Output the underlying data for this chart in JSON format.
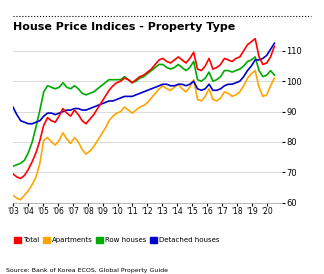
{
  "title": "House Price Indices - Property Type",
  "source": "Source: Bank of Korea ECOS, Global Property Guide",
  "ylim": [
    60,
    115
  ],
  "yticks": [
    60,
    70,
    80,
    90,
    100,
    110
  ],
  "colors": {
    "total": "#ff0000",
    "apartments": "#ffa500",
    "row_houses": "#00aa00",
    "detached": "#0000cc"
  },
  "legend": [
    "Total",
    "Apartments",
    "Row houses",
    "Detached houses"
  ],
  "x_start": 2003.0,
  "x_end": 2020.5,
  "xlim": [
    2003.0,
    2021.0
  ],
  "xtick_labels": [
    "'03",
    "'04",
    "'05",
    "'06",
    "'07",
    "'08",
    "'09",
    "'10",
    "'11",
    "'12",
    "'13",
    "'14",
    "'15",
    "'16",
    "'17",
    "'18",
    "'19",
    "'20"
  ],
  "total": [
    69.5,
    68.5,
    68.0,
    69.0,
    71.0,
    73.5,
    76.5,
    80.5,
    85.5,
    88.0,
    87.0,
    86.5,
    88.5,
    91.0,
    89.5,
    88.5,
    90.5,
    89.0,
    87.0,
    86.0,
    87.5,
    89.0,
    91.0,
    93.0,
    95.0,
    97.0,
    98.5,
    99.5,
    100.0,
    101.0,
    100.5,
    99.5,
    100.5,
    101.5,
    102.0,
    103.0,
    104.0,
    105.5,
    107.0,
    107.5,
    106.5,
    106.0,
    107.0,
    108.0,
    107.0,
    106.0,
    107.5,
    109.5,
    104.0,
    103.5,
    105.0,
    107.5,
    104.0,
    104.5,
    105.5,
    107.5,
    107.0,
    106.5,
    107.5,
    108.0,
    110.0,
    112.0,
    113.0,
    114.0,
    108.0,
    105.5,
    106.0,
    108.0,
    111.5
  ],
  "apartments": [
    62.5,
    61.5,
    61.0,
    62.5,
    64.0,
    66.0,
    68.5,
    73.0,
    80.5,
    81.5,
    80.0,
    79.0,
    80.5,
    83.0,
    81.0,
    79.5,
    81.5,
    80.0,
    77.5,
    76.0,
    77.0,
    78.5,
    80.5,
    82.5,
    84.5,
    87.0,
    88.5,
    89.5,
    90.0,
    91.5,
    90.5,
    89.5,
    90.5,
    91.5,
    92.0,
    93.0,
    94.5,
    96.0,
    97.5,
    98.5,
    97.5,
    97.0,
    98.0,
    99.0,
    97.5,
    96.5,
    98.0,
    100.5,
    94.0,
    93.5,
    95.0,
    97.5,
    94.0,
    93.5,
    94.5,
    96.5,
    96.0,
    95.0,
    95.5,
    96.5,
    98.5,
    101.0,
    102.5,
    103.5,
    98.0,
    95.0,
    95.5,
    98.5,
    101.0
  ],
  "row_houses": [
    72.0,
    72.5,
    73.0,
    74.0,
    76.5,
    80.0,
    85.0,
    90.5,
    96.5,
    98.5,
    98.0,
    97.5,
    98.0,
    99.5,
    98.0,
    97.5,
    98.5,
    97.5,
    96.0,
    95.5,
    96.0,
    96.5,
    97.5,
    98.5,
    99.5,
    100.5,
    100.5,
    100.5,
    100.5,
    101.5,
    100.5,
    99.5,
    100.0,
    101.0,
    101.5,
    102.5,
    103.5,
    104.5,
    105.5,
    105.5,
    104.5,
    104.0,
    104.5,
    105.5,
    104.5,
    103.5,
    104.5,
    106.5,
    100.5,
    100.0,
    101.0,
    103.0,
    100.0,
    100.5,
    101.5,
    103.5,
    103.5,
    103.0,
    103.5,
    104.0,
    105.0,
    106.5,
    107.0,
    108.0,
    103.5,
    101.5,
    102.0,
    103.5,
    102.0
  ],
  "detached": [
    91.5,
    89.0,
    87.0,
    86.5,
    86.0,
    86.0,
    86.5,
    87.0,
    88.5,
    89.5,
    89.5,
    89.0,
    89.5,
    90.0,
    90.5,
    90.5,
    91.0,
    91.0,
    90.5,
    90.5,
    91.0,
    91.5,
    92.0,
    92.5,
    93.0,
    93.5,
    93.5,
    94.0,
    94.5,
    95.0,
    95.0,
    95.0,
    95.5,
    96.0,
    96.5,
    97.0,
    97.5,
    98.0,
    98.5,
    99.0,
    99.0,
    98.5,
    98.5,
    99.0,
    99.0,
    98.5,
    99.0,
    100.0,
    97.5,
    97.0,
    97.5,
    99.0,
    97.0,
    97.0,
    97.5,
    98.5,
    99.0,
    99.0,
    99.5,
    100.0,
    101.5,
    103.5,
    105.0,
    107.0,
    107.0,
    107.5,
    108.5,
    110.5,
    112.5
  ]
}
